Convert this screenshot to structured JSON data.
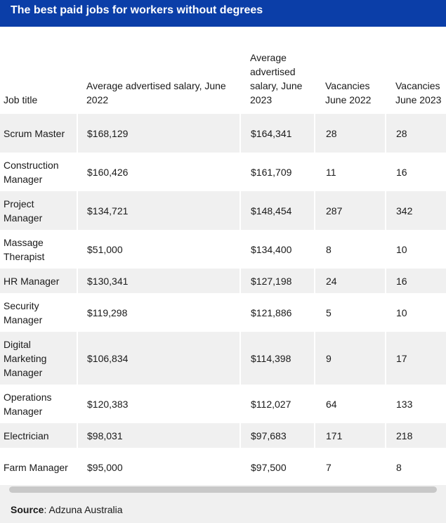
{
  "title": "The best paid jobs for workers without degrees",
  "source_label": "Source",
  "source_value": ": Adzuna Australia",
  "chart_data": {
    "type": "table",
    "title": "The best paid jobs for workers without degrees",
    "columns": [
      "Job title",
      "Average advertised salary, June 2022",
      "Average advertised salary, June 2023",
      "Vacancies June 2022",
      "Vacancies June 2023"
    ],
    "rows": [
      [
        "Scrum Master",
        "$168,129",
        "$164,341",
        "28",
        "28"
      ],
      [
        "Construction Manager",
        "$160,426",
        "$161,709",
        "11",
        "16"
      ],
      [
        "Project Manager",
        "$134,721",
        "$148,454",
        "287",
        "342"
      ],
      [
        "Massage Therapist",
        "$51,000",
        "$134,400",
        "8",
        "10"
      ],
      [
        "HR Manager",
        "$130,341",
        "$127,198",
        "24",
        "16"
      ],
      [
        "Security Manager",
        "$119,298",
        "$121,886",
        "5",
        "10"
      ],
      [
        "Digital Marketing Manager",
        "$106,834",
        "$114,398",
        "9",
        "17"
      ],
      [
        "Operations Manager",
        "$120,383",
        "$112,027",
        "64",
        "133"
      ],
      [
        "Electrician",
        "$98,031",
        "$97,683",
        "171",
        "218"
      ],
      [
        "Farm Manager",
        "$95,000",
        "$97,500",
        "7",
        "8"
      ]
    ]
  }
}
